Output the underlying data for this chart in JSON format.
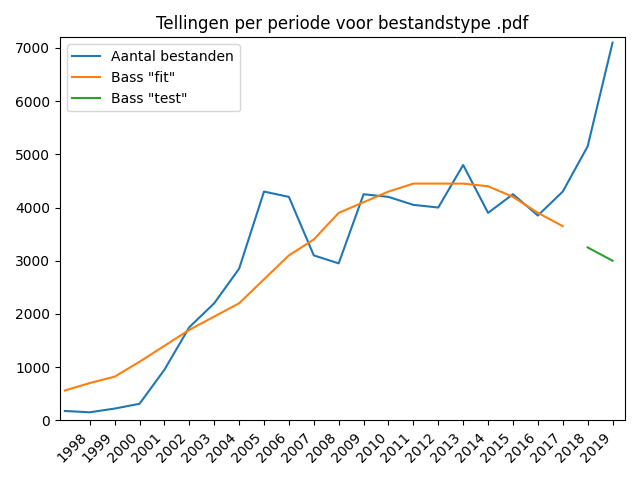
{
  "title": "Tellingen per periode voor bestandstype .pdf",
  "years_blue": [
    1997,
    1998,
    1999,
    2000,
    2001,
    2002,
    2003,
    2004,
    2005,
    2006,
    2007,
    2008,
    2009,
    2010,
    2011,
    2012,
    2013,
    2014,
    2015,
    2016,
    2017,
    2018,
    2019
  ],
  "values_blue": [
    175,
    150,
    220,
    310,
    950,
    1750,
    2200,
    2850,
    4300,
    4200,
    3100,
    2950,
    4250,
    4200,
    4050,
    4000,
    4800,
    3900,
    4250,
    3850,
    4300,
    5150,
    7100
  ],
  "years_orange": [
    1997,
    1998,
    1999,
    2000,
    2001,
    2002,
    2003,
    2004,
    2005,
    2006,
    2007,
    2008,
    2009,
    2010,
    2011,
    2012,
    2013,
    2014,
    2015,
    2016,
    2017
  ],
  "values_orange": [
    560,
    700,
    820,
    1100,
    1400,
    1700,
    1950,
    2200,
    2650,
    3100,
    3400,
    3900,
    4100,
    4300,
    4450,
    4450,
    4450,
    4400,
    4200,
    3900,
    3650
  ],
  "years_green": [
    2018,
    2019
  ],
  "values_green": [
    3250,
    3000
  ],
  "legend_blue": "Aantal bestanden",
  "legend_orange": "Bass \"fit\"",
  "legend_green": "Bass \"test\"",
  "color_blue": "#1f77b4",
  "color_orange": "#ff7f0e",
  "color_green": "#2ca02c",
  "ylim": [
    0,
    7200
  ],
  "yticks": [
    0,
    1000,
    2000,
    3000,
    4000,
    5000,
    6000,
    7000
  ],
  "xtick_labels": [
    "1998",
    "1999",
    "2000",
    "2001",
    "2002",
    "2003",
    "2004",
    "2005",
    "2006",
    "2007",
    "2008",
    "2009",
    "2010",
    "2011",
    "2012",
    "2013",
    "2014",
    "2015",
    "2016",
    "2017",
    "2018",
    "2019"
  ],
  "xtick_positions": [
    1998,
    1999,
    2000,
    2001,
    2002,
    2003,
    2004,
    2005,
    2006,
    2007,
    2008,
    2009,
    2010,
    2011,
    2012,
    2013,
    2014,
    2015,
    2016,
    2017,
    2018,
    2019
  ],
  "xlim": [
    1996.8,
    2019.5
  ],
  "xtick_rotation": 45,
  "figsize": [
    6.4,
    4.8
  ],
  "dpi": 100
}
